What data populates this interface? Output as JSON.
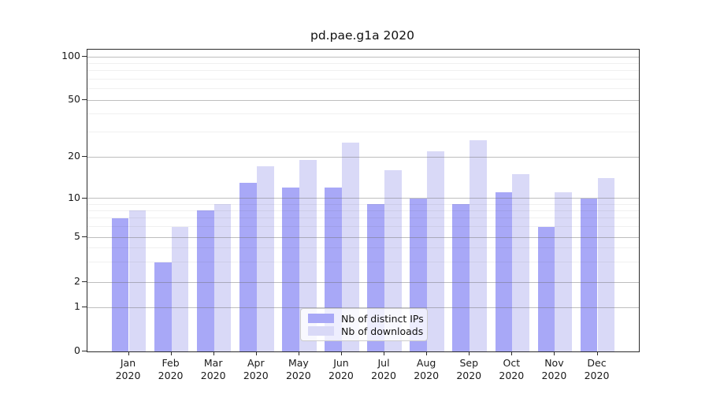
{
  "colors": {
    "distinct_ips": "#a8a8f7",
    "downloads": "#d9d9f7",
    "grid_major": "#b0b0b0",
    "grid_minor": "#ececec",
    "axis": "#2b2b2b"
  },
  "chart_data": {
    "type": "bar",
    "title": "pd.pae.g1a 2020",
    "categories": [
      "Jan 2020",
      "Feb 2020",
      "Mar 2020",
      "Apr 2020",
      "May 2020",
      "Jun 2020",
      "Jul 2020",
      "Aug 2020",
      "Sep 2020",
      "Oct 2020",
      "Nov 2020",
      "Dec 2020"
    ],
    "series": [
      {
        "name": "Nb of distinct IPs",
        "values": [
          7,
          3,
          8,
          13,
          12,
          12,
          9,
          10,
          9,
          11,
          6,
          10
        ]
      },
      {
        "name": "Nb of downloads",
        "values": [
          8,
          6,
          9,
          17,
          19,
          25,
          16,
          22,
          26,
          15,
          11,
          14
        ]
      }
    ],
    "xlabel": "",
    "ylabel": "",
    "yscale": "asinh (log-like above 1, linear 0-1)",
    "yticks": [
      0,
      1,
      2,
      5,
      10,
      20,
      50,
      100
    ],
    "y_minor_ticks": [
      3,
      4,
      6,
      7,
      8,
      9,
      30,
      40,
      60,
      70,
      80,
      90
    ],
    "ylim": [
      0,
      112
    ],
    "grid": true,
    "legend_position": "lower center"
  }
}
